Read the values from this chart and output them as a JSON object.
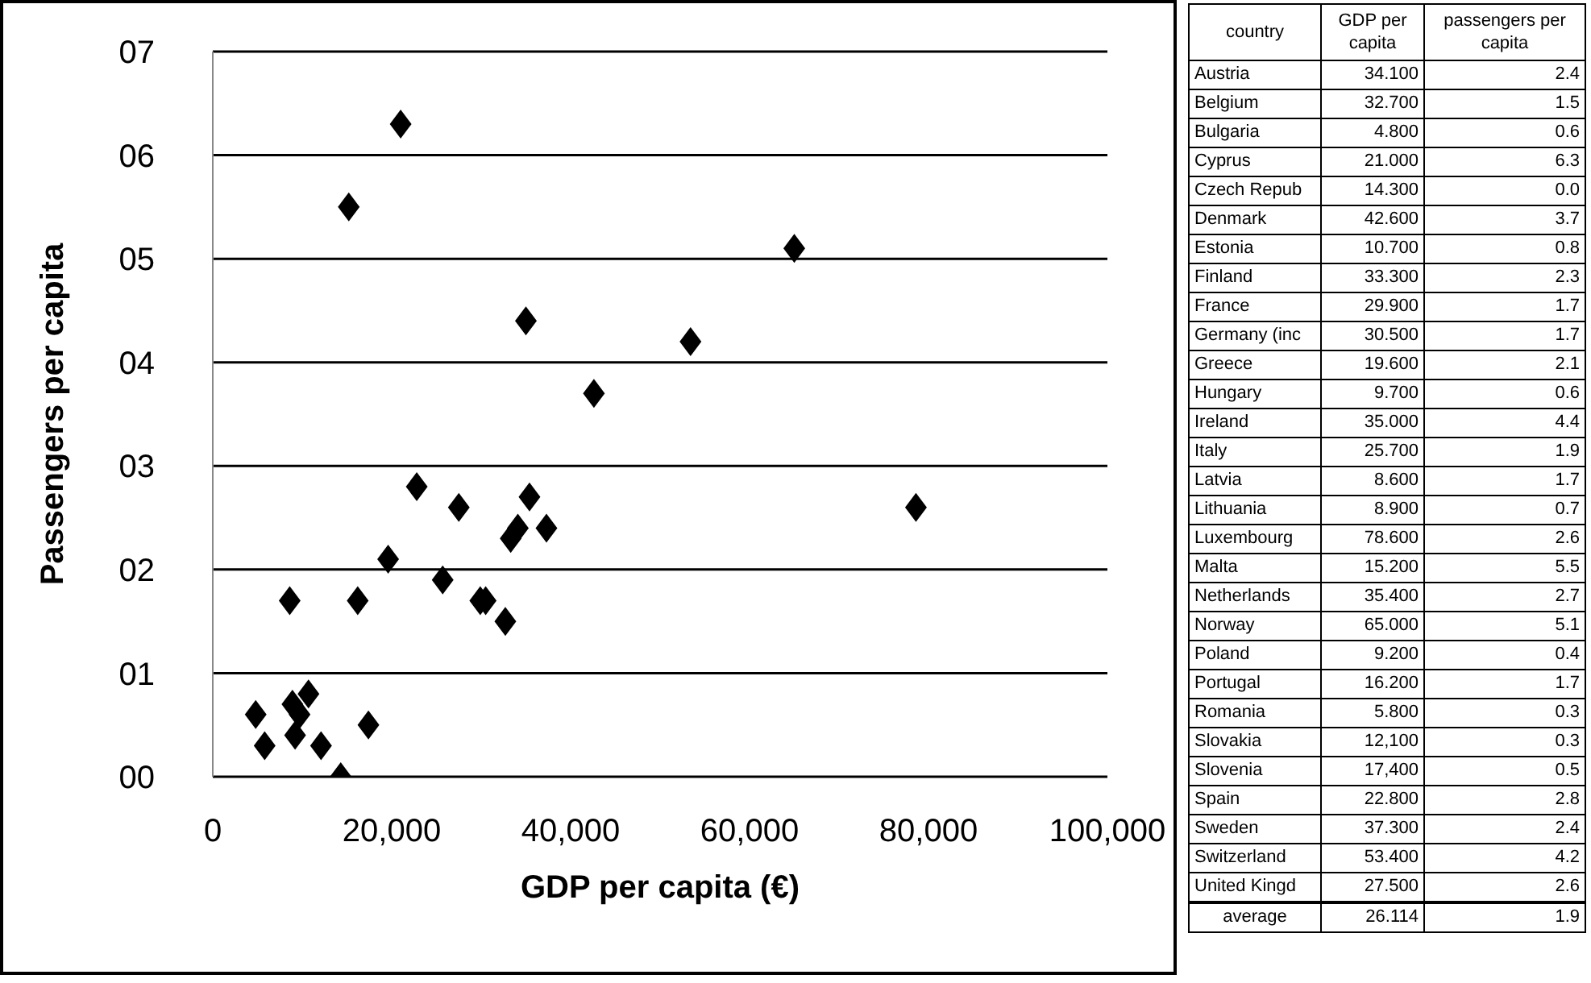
{
  "chart_data": [
    {
      "type": "scatter",
      "xlabel": "GDP per capita (€)",
      "ylabel": "Passengers per capita",
      "x": [
        34100,
        32700,
        4800,
        21000,
        14300,
        42600,
        10700,
        33300,
        29900,
        30500,
        19600,
        9700,
        35000,
        25700,
        8600,
        8900,
        78600,
        15200,
        35400,
        65000,
        9200,
        16200,
        5800,
        12100,
        17400,
        22800,
        37300,
        53400,
        27500
      ],
      "values": [
        2.4,
        1.5,
        0.6,
        6.3,
        0.0,
        3.7,
        0.8,
        2.3,
        1.7,
        1.7,
        2.1,
        0.6,
        4.4,
        1.9,
        1.7,
        0.7,
        2.6,
        5.5,
        2.7,
        5.1,
        0.4,
        1.7,
        0.3,
        0.3,
        0.5,
        2.8,
        2.4,
        4.2,
        2.6
      ],
      "color": "#000000",
      "marker": "diamond",
      "grid": "y",
      "xlim": [
        0,
        100000
      ],
      "xticks": [
        0,
        {
          "value": 20000,
          "label": "20,000"
        },
        {
          "value": 40000,
          "label": "40,000"
        },
        {
          "value": 60000,
          "label": "60,000"
        },
        {
          "value": 80000,
          "label": "80,000"
        },
        {
          "value": 100000,
          "label": "100,000"
        }
      ],
      "ylim": [
        0,
        7
      ],
      "yticks": [
        {
          "value": 0,
          "label": "00"
        },
        {
          "value": 1,
          "label": "01"
        },
        {
          "value": 2,
          "label": "02"
        },
        {
          "value": 3,
          "label": "03"
        },
        {
          "value": 4,
          "label": "04"
        },
        {
          "value": 5,
          "label": "05"
        },
        {
          "value": 6,
          "label": "06"
        },
        {
          "value": 7,
          "label": "07"
        }
      ]
    },
    {
      "type": "other",
      "annotations": [
        "country",
        "GDP per capita",
        "passengers per capita",
        "Austria",
        "34.100",
        "2.4",
        "Belgium",
        "32.700",
        "1.5",
        "Bulgaria",
        "4.800",
        "0.6",
        "Cyprus",
        "21.000",
        "6.3",
        "Czech Repub",
        "14.300",
        "0.0",
        "Denmark",
        "42.600",
        "3.7",
        "Estonia",
        "10.700",
        "0.8",
        "Finland",
        "33.300",
        "2.3",
        "France",
        "29.900",
        "1.7",
        "Germany (inc",
        "30.500",
        "1.7",
        "Greece",
        "19.600",
        "2.1",
        "Hungary",
        "9.700",
        "0.6",
        "Ireland",
        "35.000",
        "4.4",
        "Italy",
        "25.700",
        "1.9",
        "Latvia",
        "8.600",
        "1.7",
        "Lithuania",
        "8.900",
        "0.7",
        "Luxembourg",
        "78.600",
        "2.6",
        "Malta",
        "15.200",
        "5.5",
        "Netherlands",
        "35.400",
        "2.7",
        "Norway",
        "65.000",
        "5.1",
        "Poland",
        "9.200",
        "0.4",
        "Portugal",
        "16.200",
        "1.7",
        "Romania",
        "5.800",
        "0.3",
        "Slovakia",
        "12,100",
        "0.3",
        "Slovenia",
        "17,400",
        "0.5",
        "Spain",
        "22.800",
        "2.8",
        "Sweden",
        "37.300",
        "2.4",
        "Switzerland",
        "53.400",
        "4.2",
        "United Kingd",
        "27.500",
        "2.6",
        "average",
        "26.114",
        "1.9"
      ]
    }
  ]
}
